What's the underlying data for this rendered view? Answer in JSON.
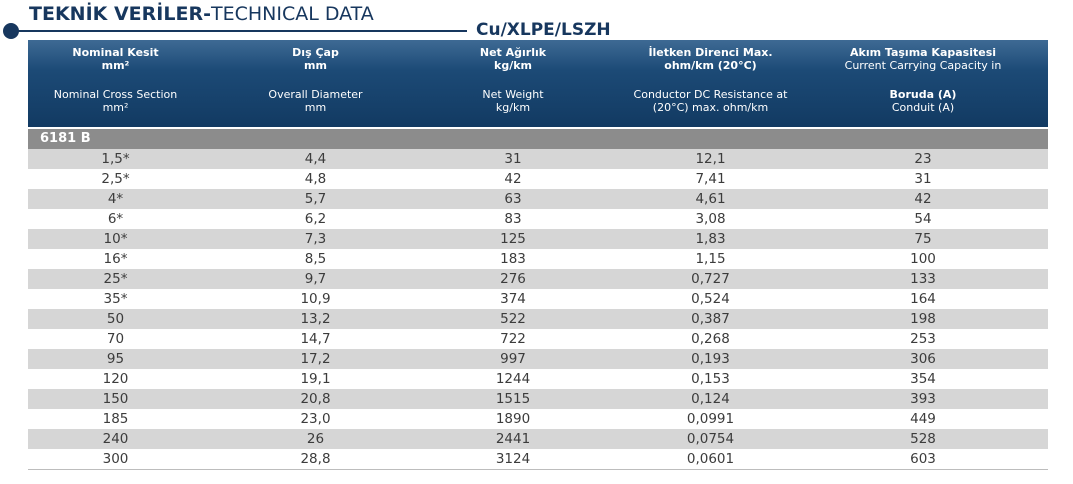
{
  "heading": {
    "title_bold": "TEKNİK VERİLER-",
    "title_regular": "TECHNICAL DATA",
    "subtitle": "Cu/XLPE/LSZH"
  },
  "columns": [
    {
      "tr_line1": "Nominal Kesit",
      "tr_line2": "mm²",
      "en_line1": "Nominal Cross Section",
      "en_line2": "mm²"
    },
    {
      "tr_line1": "Dış Çap",
      "tr_line2": "mm",
      "en_line1": "Overall Diameter",
      "en_line2": "mm"
    },
    {
      "tr_line1": "Net Ağırlık",
      "tr_line2": "kg/km",
      "en_line1": "Net Weight",
      "en_line2": "kg/km"
    },
    {
      "tr_line1": "İletken Direnci Max.",
      "tr_line2": "ohm/km (20°C)",
      "en_line1": "Conductor DC Resistance at",
      "en_line2": "(20°C) max. ohm/km"
    },
    {
      "tr_line1": "Akım Taşıma Kapasitesi",
      "tr_line2": "Current Carrying Capacity in",
      "en_line1": "Boruda (A)",
      "en_line2": "Conduit (A)"
    }
  ],
  "group_label": "6181 B",
  "rows": [
    [
      "1,5*",
      "4,4",
      "31",
      "12,1",
      "23"
    ],
    [
      "2,5*",
      "4,8",
      "42",
      "7,41",
      "31"
    ],
    [
      "4*",
      "5,7",
      "63",
      "4,61",
      "42"
    ],
    [
      "6*",
      "6,2",
      "83",
      "3,08",
      "54"
    ],
    [
      "10*",
      "7,3",
      "125",
      "1,83",
      "75"
    ],
    [
      "16*",
      "8,5",
      "183",
      "1,15",
      "100"
    ],
    [
      "25*",
      "9,7",
      "276",
      "0,727",
      "133"
    ],
    [
      "35*",
      "10,9",
      "374",
      "0,524",
      "164"
    ],
    [
      "50",
      "13,2",
      "522",
      "0,387",
      "198"
    ],
    [
      "70",
      "14,7",
      "722",
      "0,268",
      "253"
    ],
    [
      "95",
      "17,2",
      "997",
      "0,193",
      "306"
    ],
    [
      "120",
      "19,1",
      "1244",
      "0,153",
      "354"
    ],
    [
      "150",
      "20,8",
      "1515",
      "0,124",
      "393"
    ],
    [
      "185",
      "23,0",
      "1890",
      "0,0991",
      "449"
    ],
    [
      "240",
      "26",
      "2441",
      "0,0754",
      "528"
    ],
    [
      "300",
      "28,8",
      "3124",
      "0,0601",
      "603"
    ]
  ],
  "colors": {
    "header_bg": "#1c4a76",
    "title": "#17375e",
    "group_bg": "#8c8c8c",
    "stripe": "#d6d6d6"
  }
}
